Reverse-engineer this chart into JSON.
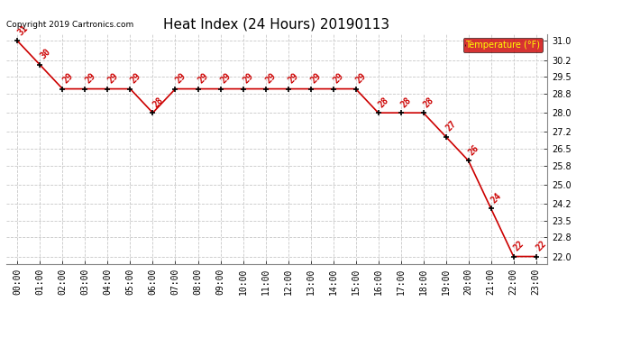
{
  "title": "Heat Index (24 Hours) 20190113",
  "copyright": "Copyright 2019 Cartronics.com",
  "legend_label": "Temperature (°F)",
  "x_labels": [
    "00:00",
    "01:00",
    "02:00",
    "03:00",
    "04:00",
    "05:00",
    "06:00",
    "07:00",
    "08:00",
    "09:00",
    "10:00",
    "11:00",
    "12:00",
    "13:00",
    "14:00",
    "15:00",
    "16:00",
    "17:00",
    "18:00",
    "19:00",
    "20:00",
    "21:00",
    "22:00",
    "23:00"
  ],
  "y_values": [
    31,
    30,
    29,
    29,
    29,
    29,
    28,
    29,
    29,
    29,
    29,
    29,
    29,
    29,
    29,
    29,
    28,
    28,
    28,
    27,
    26,
    24,
    22,
    22
  ],
  "ylim": [
    21.7,
    31.3
  ],
  "yticks": [
    22.0,
    22.8,
    23.5,
    24.2,
    25.0,
    25.8,
    26.5,
    27.2,
    28.0,
    28.8,
    29.5,
    30.2,
    31.0
  ],
  "line_color": "#cc0000",
  "marker_color": "#000000",
  "label_color": "#cc0000",
  "bg_color": "#ffffff",
  "grid_color": "#c8c8c8",
  "title_fontsize": 11,
  "label_fontsize": 7,
  "tick_fontsize": 7,
  "copyright_fontsize": 6.5,
  "legend_bg": "#cc0000",
  "legend_text_color": "#ffff00"
}
